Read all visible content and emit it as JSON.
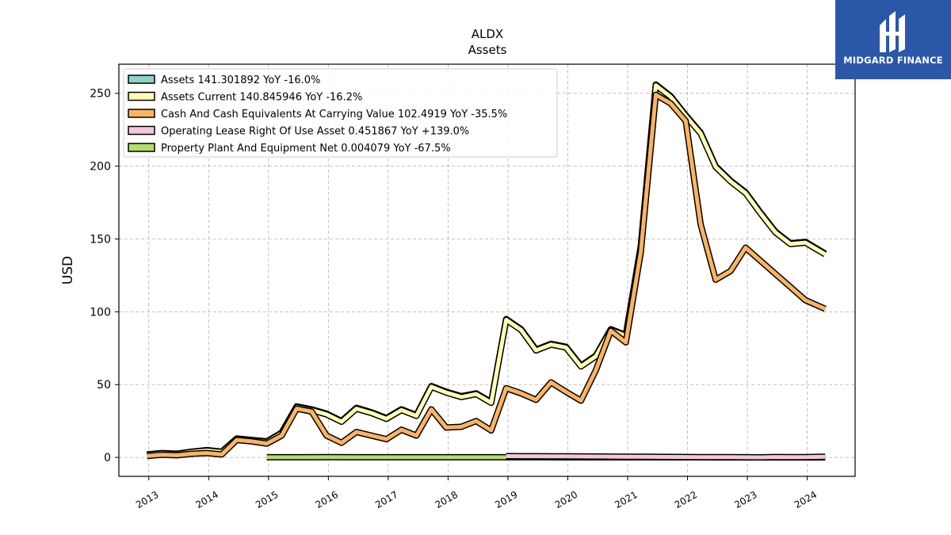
{
  "branding": {
    "logo_text": "MIDGARD FINANCE",
    "color": "#2a57a8"
  },
  "chart_data": {
    "type": "line",
    "title": "ALDX",
    "subtitle": "Assets",
    "ylabel": "USD",
    "xlabel": "",
    "xlim": [
      2012.5,
      2024.8
    ],
    "ylim": [
      -13,
      270
    ],
    "yticks": [
      0,
      50,
      100,
      150,
      200,
      250
    ],
    "xticks": [
      "2013",
      "2014",
      "2015",
      "2016",
      "2017",
      "2018",
      "2019",
      "2020",
      "2021",
      "2022",
      "2023",
      "2024"
    ],
    "grid": true,
    "legend_position": "top-left",
    "series": [
      {
        "name": "Assets",
        "legend": "Assets  141.301892 YoY -16.0%",
        "color": "#8dd3c7",
        "x": [
          2012.97,
          2013.22,
          2013.47,
          2013.72,
          2013.97,
          2014.22,
          2014.47,
          2014.72,
          2014.97,
          2015.22,
          2015.47,
          2015.72,
          2015.97,
          2016.22,
          2016.47,
          2016.72,
          2016.97,
          2017.22,
          2017.47,
          2017.72,
          2017.97,
          2018.22,
          2018.47,
          2018.72,
          2018.97,
          2019.22,
          2019.47,
          2019.72,
          2019.97,
          2020.22,
          2020.47,
          2020.72,
          2020.97,
          2021.22,
          2021.47,
          2021.72,
          2021.97,
          2022.22,
          2022.47,
          2022.72,
          2022.97,
          2023.22,
          2023.47,
          2023.72,
          2023.97,
          2024.3
        ],
        "y": [
          2,
          3,
          2.5,
          4,
          5,
          4,
          13,
          12,
          11,
          17,
          35,
          33,
          30,
          25,
          34,
          31,
          27,
          33,
          29,
          49,
          45,
          42,
          44,
          38,
          95,
          88,
          74,
          78,
          76,
          63,
          70,
          88,
          84,
          145,
          256,
          248,
          235,
          223,
          200,
          190,
          182,
          168,
          155,
          147,
          148,
          140
        ]
      },
      {
        "name": "Assets Current",
        "legend": "Assets Current  140.845946 YoY -16.2%",
        "color": "#ffffb3",
        "x": [
          2012.97,
          2013.22,
          2013.47,
          2013.72,
          2013.97,
          2014.22,
          2014.47,
          2014.72,
          2014.97,
          2015.22,
          2015.47,
          2015.72,
          2015.97,
          2016.22,
          2016.47,
          2016.72,
          2016.97,
          2017.22,
          2017.47,
          2017.72,
          2017.97,
          2018.22,
          2018.47,
          2018.72,
          2018.97,
          2019.22,
          2019.47,
          2019.72,
          2019.97,
          2020.22,
          2020.47,
          2020.72,
          2020.97,
          2021.22,
          2021.47,
          2021.72,
          2021.97,
          2022.22,
          2022.47,
          2022.72,
          2022.97,
          2023.22,
          2023.47,
          2023.72,
          2023.97,
          2024.3
        ],
        "y": [
          1.8,
          2.8,
          2.3,
          3.8,
          4.7,
          3.7,
          12.7,
          11.6,
          10.6,
          16.6,
          34.5,
          32.5,
          29.5,
          24.5,
          33.5,
          30.5,
          26.5,
          32.5,
          28.5,
          48.5,
          44.5,
          41.5,
          43.5,
          37.5,
          94.5,
          87.5,
          73.5,
          77.5,
          75.5,
          62.5,
          69.5,
          87.5,
          83.5,
          144.5,
          255.5,
          247.5,
          234.5,
          222.5,
          199.5,
          189.5,
          181.5,
          167.5,
          154.5,
          146.5,
          147.5,
          139.5
        ]
      },
      {
        "name": "Cash And Cash Equivalents At Carrying Value",
        "legend": "Cash And Cash Equivalents At Carrying Value  102.4919 YoY -35.5%",
        "color": "#fdb462",
        "x": [
          2012.97,
          2013.22,
          2013.47,
          2013.72,
          2013.97,
          2014.22,
          2014.47,
          2014.72,
          2014.97,
          2015.22,
          2015.47,
          2015.72,
          2015.97,
          2016.22,
          2016.47,
          2016.72,
          2016.97,
          2017.22,
          2017.47,
          2017.72,
          2017.97,
          2018.22,
          2018.47,
          2018.72,
          2018.97,
          2019.22,
          2019.47,
          2019.72,
          2019.97,
          2020.22,
          2020.47,
          2020.72,
          2020.97,
          2021.22,
          2021.47,
          2021.72,
          2021.97,
          2022.22,
          2022.47,
          2022.72,
          2022.97,
          2023.22,
          2023.47,
          2023.72,
          2023.97,
          2024.3
        ],
        "y": [
          1,
          1.8,
          1.5,
          2.5,
          3,
          2,
          12,
          11,
          9.5,
          15,
          33.5,
          31.5,
          15,
          10,
          17.5,
          15,
          12.5,
          19,
          15,
          33,
          20.5,
          21,
          25,
          18.5,
          47.5,
          44,
          39.5,
          51.5,
          45,
          39,
          60,
          87,
          79,
          141,
          249,
          243,
          231,
          160,
          122,
          128,
          144,
          135,
          126,
          117,
          108,
          102
        ]
      },
      {
        "name": "Operating Lease Right Of Use Asset",
        "legend": "Operating Lease Right Of Use Asset  0.451867 YoY +139.0%",
        "color": "#f7c6d9",
        "x": [
          2018.97,
          2019.22,
          2019.47,
          2019.72,
          2019.97,
          2020.22,
          2020.47,
          2020.72,
          2020.97,
          2021.22,
          2021.47,
          2021.72,
          2021.97,
          2022.22,
          2022.47,
          2022.72,
          2022.97,
          2023.22,
          2023.47,
          2023.72,
          2023.97,
          2024.3
        ],
        "y": [
          0.9,
          0.85,
          0.8,
          0.75,
          0.7,
          0.65,
          0.6,
          0.55,
          0.5,
          0.45,
          0.4,
          0.35,
          0.3,
          0.25,
          0.2,
          0.15,
          0.1,
          0.05,
          0.3,
          0.2,
          0.19,
          0.45
        ]
      },
      {
        "name": "Property Plant And Equipment Net",
        "legend": "Property Plant And Equipment Net  0.004079 YoY -67.5%",
        "color": "#b3de69",
        "x": [
          2014.97,
          2015.5,
          2016.0,
          2016.5,
          2017.0,
          2017.5,
          2018.0,
          2018.5,
          2019.0,
          2019.5,
          2020.0,
          2020.5,
          2021.0,
          2021.5,
          2022.0,
          2022.5,
          2023.0,
          2023.5,
          2024.0,
          2024.3
        ],
        "y": [
          0.1,
          0.12,
          0.15,
          0.14,
          0.13,
          0.12,
          0.11,
          0.1,
          0.1,
          0.09,
          0.08,
          0.07,
          0.06,
          0.05,
          0.04,
          0.03,
          0.02,
          0.01,
          0.012,
          0.004
        ]
      }
    ]
  }
}
